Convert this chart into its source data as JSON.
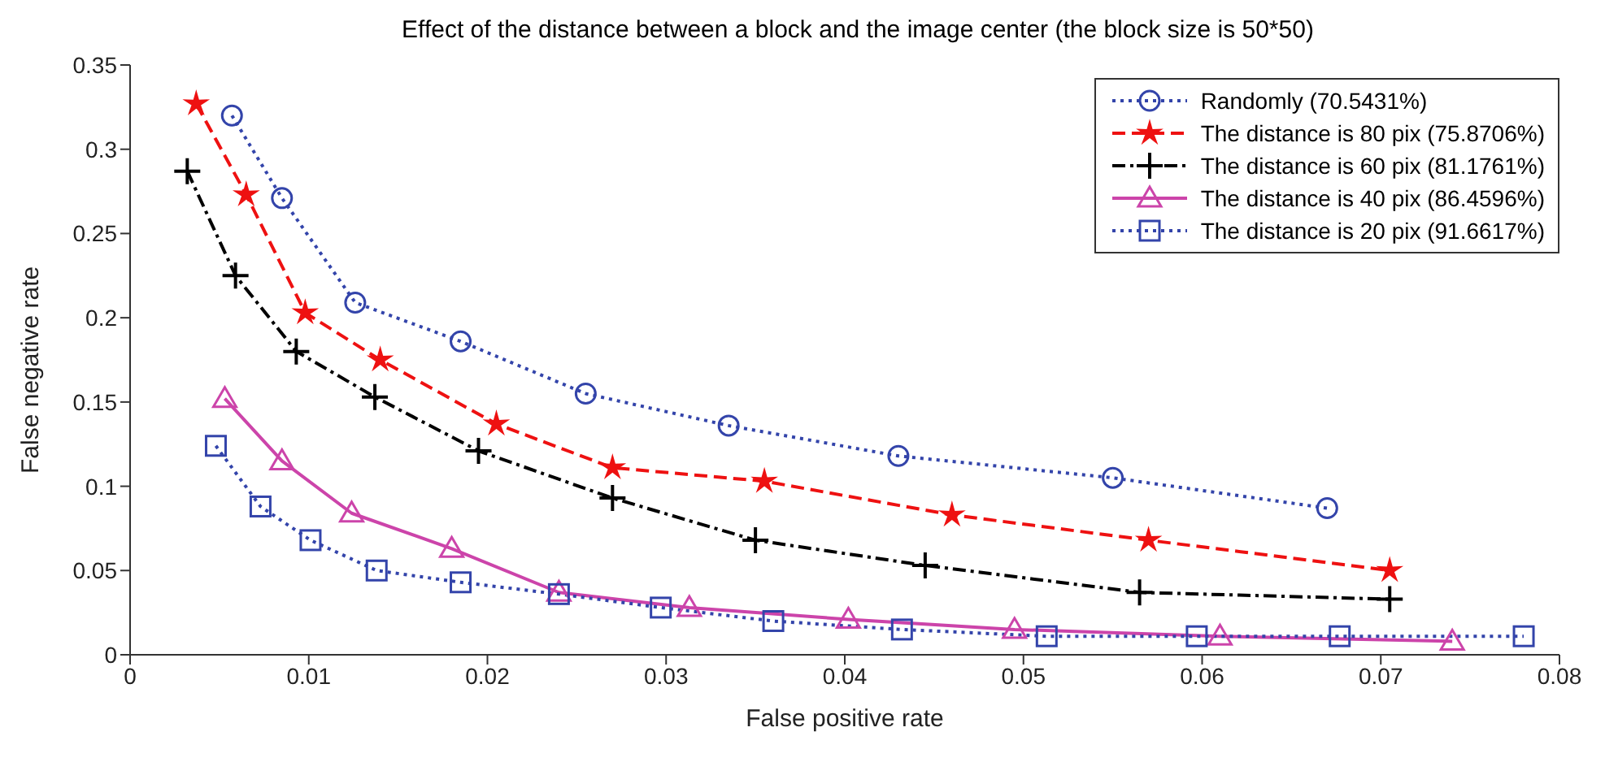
{
  "chart_data": {
    "type": "line",
    "title": "Effect of the distance between a block and the image center (the block size is 50*50)",
    "xlabel": "False positive rate",
    "ylabel": "False negative rate",
    "xlim": [
      0,
      0.08
    ],
    "xticks": [
      0,
      0.01,
      0.02,
      0.03,
      0.04,
      0.05,
      0.06,
      0.07,
      0.08
    ],
    "ylim": [
      0,
      0.35
    ],
    "yticks": [
      0,
      0.05,
      0.1,
      0.15,
      0.2,
      0.25,
      0.3,
      0.35
    ],
    "grid": false,
    "legend": "top right",
    "series": [
      {
        "name": "Randomly (70.5431%)",
        "color": "#3344aa",
        "marker": "circle",
        "line_style": "dotted",
        "x": [
          0.0057,
          0.0085,
          0.0126,
          0.0185,
          0.0255,
          0.0335,
          0.043,
          0.055,
          0.067
        ],
        "values": [
          0.32,
          0.271,
          0.209,
          0.186,
          0.155,
          0.136,
          0.118,
          0.105,
          0.087
        ]
      },
      {
        "name": "The distance is 80 pix (75.8706%)",
        "color": "#ee1111",
        "marker": "star",
        "line_style": "dashed",
        "x": [
          0.0037,
          0.0065,
          0.0098,
          0.014,
          0.0205,
          0.027,
          0.0355,
          0.046,
          0.057,
          0.0705
        ],
        "values": [
          0.327,
          0.273,
          0.203,
          0.175,
          0.137,
          0.111,
          0.103,
          0.083,
          0.068,
          0.05
        ]
      },
      {
        "name": "The distance is 60 pix (81.1761%)",
        "color": "#000000",
        "marker": "cross",
        "line_style": "dashdot",
        "x": [
          0.0032,
          0.0059,
          0.0093,
          0.0137,
          0.0195,
          0.027,
          0.035,
          0.0445,
          0.0565,
          0.0705
        ],
        "values": [
          0.287,
          0.225,
          0.18,
          0.153,
          0.121,
          0.093,
          0.068,
          0.053,
          0.037,
          0.033
        ]
      },
      {
        "name": "The distance is 40 pix (86.4596%)",
        "color": "#cc44aa",
        "marker": "triangle",
        "line_style": "solid",
        "x": [
          0.0053,
          0.0085,
          0.0124,
          0.018,
          0.024,
          0.0313,
          0.0402,
          0.0495,
          0.061,
          0.074
        ],
        "values": [
          0.152,
          0.115,
          0.084,
          0.063,
          0.037,
          0.028,
          0.021,
          0.015,
          0.011,
          0.008
        ]
      },
      {
        "name": "The distance is 20 pix (91.6617%)",
        "color": "#3344aa",
        "marker": "square",
        "line_style": "dotted",
        "x": [
          0.0048,
          0.0073,
          0.0101,
          0.0138,
          0.0185,
          0.024,
          0.0297,
          0.036,
          0.0432,
          0.0513,
          0.0597,
          0.0677,
          0.078
        ],
        "values": [
          0.124,
          0.088,
          0.068,
          0.05,
          0.043,
          0.036,
          0.028,
          0.02,
          0.015,
          0.011,
          0.011,
          0.011,
          0.011
        ]
      }
    ]
  }
}
